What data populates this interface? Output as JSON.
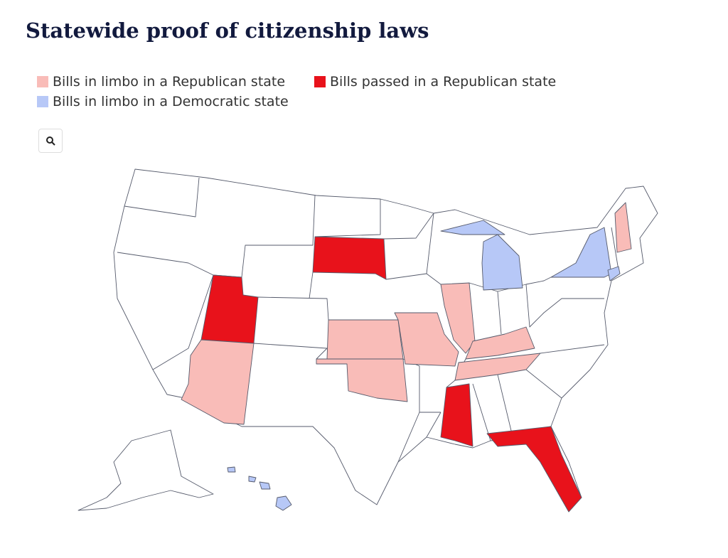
{
  "title": "Statewide proof of citizenship laws",
  "legend": [
    {
      "label": "Bills in limbo in a Republican state",
      "color": "#f9bcb8"
    },
    {
      "label": "Bills passed in a Republican state",
      "color": "#e8121b"
    },
    {
      "label": "Bills in limbo in a Democratic state",
      "color": "#b7c8f7"
    }
  ]
}
